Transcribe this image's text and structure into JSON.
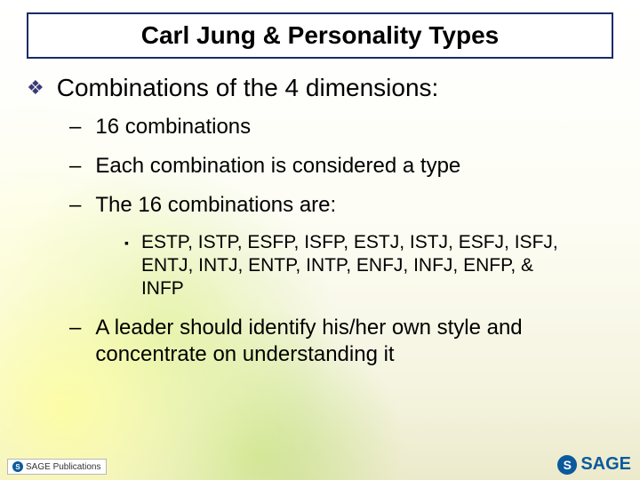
{
  "slide": {
    "title": "Carl Jung & Personality Types",
    "title_box": {
      "border_color": "#1a2a6c",
      "background": "#ffffff",
      "font_size_pt": 28,
      "font_weight": "bold"
    },
    "background": {
      "gradient_top": "#ffffff",
      "gradient_bottom": "#eceacb",
      "bokeh_colors": [
        "#ffffa0",
        "#c8e678",
        "#b4dc64",
        "#ffffdc"
      ]
    },
    "level1": {
      "bullet_glyph": "❖",
      "bullet_color": "#3a3a7a",
      "font_size_pt": 28,
      "items": [
        {
          "text": "Combinations of the 4 dimensions:"
        }
      ]
    },
    "level2": {
      "bullet_glyph": "–",
      "font_size_pt": 24,
      "items": [
        {
          "text": "16 combinations"
        },
        {
          "text": "Each combination is considered a type"
        },
        {
          "text": "The 16 combinations are:"
        },
        {
          "text": "A leader should identify his/her own style and concentrate on understanding it"
        }
      ]
    },
    "level3": {
      "bullet_glyph": "▪",
      "font_size_pt": 21,
      "items": [
        {
          "text": "ESTP, ISTP, ESFP, ISFP, ESTJ, ISTJ, ESFJ, ISFJ, ENTJ, INTJ, ENTP, INTP, ENFJ, INFJ, ENFP, & INFP"
        }
      ]
    },
    "footer": {
      "left_label": "SAGE Publications",
      "right_label": "SAGE",
      "brand_color": "#0a5a9c"
    }
  }
}
